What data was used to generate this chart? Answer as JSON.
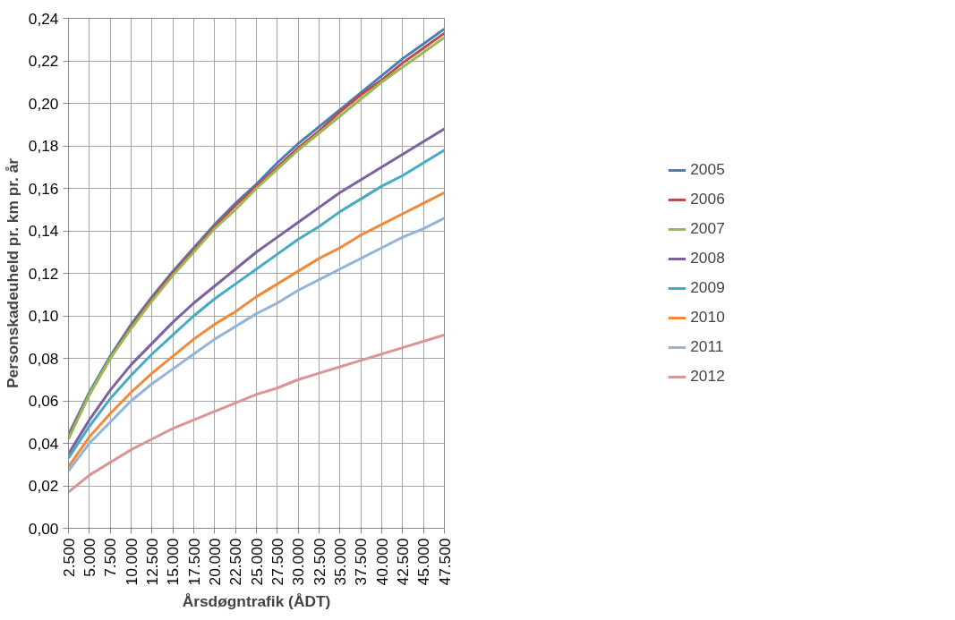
{
  "chart_data": {
    "type": "line",
    "xlabel": "Årsdøgntrafik (ÅDT)",
    "ylabel": "Personskadeuheld pr. km pr. år",
    "x": [
      2500,
      5000,
      7500,
      10000,
      12500,
      15000,
      17500,
      20000,
      22500,
      25000,
      27500,
      30000,
      32500,
      35000,
      37500,
      40000,
      42500,
      45000,
      47500
    ],
    "xlim": [
      2500,
      47500
    ],
    "xticks": [
      {
        "value": 2500,
        "label": "2.500"
      },
      {
        "value": 5000,
        "label": "5.000"
      },
      {
        "value": 7500,
        "label": "7.500"
      },
      {
        "value": 10000,
        "label": "10.000"
      },
      {
        "value": 12500,
        "label": "12.500"
      },
      {
        "value": 15000,
        "label": "15.000"
      },
      {
        "value": 17500,
        "label": "17.500"
      },
      {
        "value": 20000,
        "label": "20.000"
      },
      {
        "value": 22500,
        "label": "22.500"
      },
      {
        "value": 25000,
        "label": "25.000"
      },
      {
        "value": 27500,
        "label": "27.500"
      },
      {
        "value": 30000,
        "label": "30.000"
      },
      {
        "value": 32500,
        "label": "32.500"
      },
      {
        "value": 35000,
        "label": "35.000"
      },
      {
        "value": 37500,
        "label": "37.500"
      },
      {
        "value": 40000,
        "label": "40.000"
      },
      {
        "value": 42500,
        "label": "42.500"
      },
      {
        "value": 45000,
        "label": "45.000"
      },
      {
        "value": 47500,
        "label": "47.500"
      }
    ],
    "ylim": [
      0,
      0.24
    ],
    "yticks": [
      {
        "value": 0,
        "label": "0,00"
      },
      {
        "value": 0.02,
        "label": "0,02"
      },
      {
        "value": 0.04,
        "label": "0,04"
      },
      {
        "value": 0.06,
        "label": "0,06"
      },
      {
        "value": 0.08,
        "label": "0,08"
      },
      {
        "value": 0.1,
        "label": "0,10"
      },
      {
        "value": 0.12,
        "label": "0,12"
      },
      {
        "value": 0.14,
        "label": "0,14"
      },
      {
        "value": 0.16,
        "label": "0,16"
      },
      {
        "value": 0.18,
        "label": "0,18"
      },
      {
        "value": 0.2,
        "label": "0,20"
      },
      {
        "value": 0.22,
        "label": "0,22"
      },
      {
        "value": 0.24,
        "label": "0,24"
      }
    ],
    "grid": true,
    "legend": "right",
    "marker": "none",
    "line_style": "solid",
    "series": [
      {
        "name": "2005",
        "color": "#4a7ebb",
        "values": [
          0.044,
          0.064,
          0.081,
          0.096,
          0.109,
          0.121,
          0.132,
          0.143,
          0.153,
          0.162,
          0.172,
          0.181,
          0.189,
          0.197,
          0.205,
          0.213,
          0.221,
          0.228,
          0.235
        ]
      },
      {
        "name": "2006",
        "color": "#be4b48",
        "values": [
          0.043,
          0.063,
          0.08,
          0.095,
          0.108,
          0.12,
          0.131,
          0.142,
          0.152,
          0.161,
          0.17,
          0.179,
          0.187,
          0.196,
          0.204,
          0.211,
          0.219,
          0.226,
          0.233
        ]
      },
      {
        "name": "2007",
        "color": "#98b954",
        "values": [
          0.042,
          0.063,
          0.08,
          0.094,
          0.107,
          0.119,
          0.13,
          0.141,
          0.15,
          0.16,
          0.169,
          0.178,
          0.186,
          0.194,
          0.202,
          0.21,
          0.217,
          0.224,
          0.231
        ]
      },
      {
        "name": "2008",
        "color": "#7d60a0",
        "values": [
          0.035,
          0.051,
          0.065,
          0.077,
          0.087,
          0.097,
          0.106,
          0.114,
          0.122,
          0.13,
          0.137,
          0.144,
          0.151,
          0.158,
          0.164,
          0.17,
          0.176,
          0.182,
          0.188
        ]
      },
      {
        "name": "2009",
        "color": "#46aac5",
        "values": [
          0.033,
          0.048,
          0.061,
          0.072,
          0.082,
          0.091,
          0.1,
          0.108,
          0.115,
          0.122,
          0.129,
          0.136,
          0.142,
          0.149,
          0.155,
          0.161,
          0.166,
          0.172,
          0.178
        ]
      },
      {
        "name": "2010",
        "color": "#f08a3a",
        "values": [
          0.029,
          0.043,
          0.054,
          0.064,
          0.073,
          0.081,
          0.089,
          0.096,
          0.102,
          0.109,
          0.115,
          0.121,
          0.127,
          0.132,
          0.138,
          0.143,
          0.148,
          0.153,
          0.158
        ]
      },
      {
        "name": "2011",
        "color": "#95b3d7",
        "values": [
          0.027,
          0.04,
          0.05,
          0.06,
          0.068,
          0.075,
          0.082,
          0.089,
          0.095,
          0.101,
          0.106,
          0.112,
          0.117,
          0.122,
          0.127,
          0.132,
          0.137,
          0.141,
          0.146
        ]
      },
      {
        "name": "2012",
        "color": "#d99694",
        "values": [
          0.017,
          0.025,
          0.031,
          0.037,
          0.042,
          0.047,
          0.051,
          0.055,
          0.059,
          0.063,
          0.066,
          0.07,
          0.073,
          0.076,
          0.079,
          0.082,
          0.085,
          0.088,
          0.091
        ]
      }
    ]
  }
}
